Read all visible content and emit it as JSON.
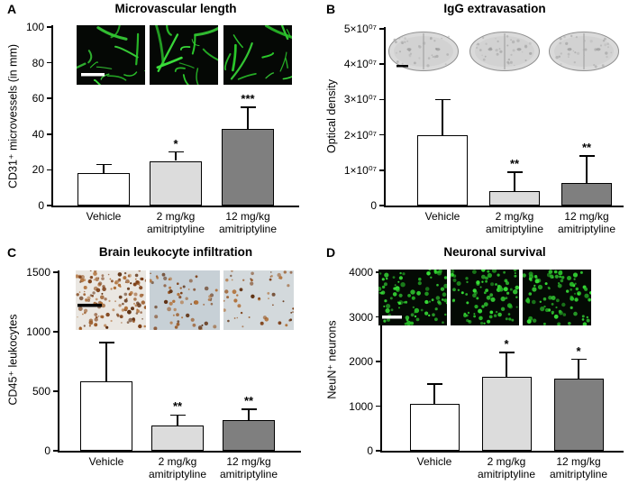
{
  "chart_data": [
    {
      "type": "bar",
      "panel": "A",
      "title": "Microvascular length",
      "ylabel": "CD31⁺ microvessels (in mm)",
      "xlabel": "",
      "categories": [
        [
          "Vehicle"
        ],
        [
          "2 mg/kg",
          "amitriptyline"
        ],
        [
          "12 mg/kg",
          "amitriptyline"
        ]
      ],
      "values": [
        18,
        25,
        43
      ],
      "errors": [
        5,
        5,
        12
      ],
      "significance": [
        "",
        "*",
        "***"
      ],
      "ylim": [
        0,
        100
      ],
      "yticks": [
        0,
        20,
        40,
        60,
        80,
        100
      ],
      "ytick_labels": [
        "0",
        "20",
        "40",
        "60",
        "80",
        "100"
      ],
      "bar_colors": [
        "#ffffff",
        "#dcdcdc",
        "#7f7f7f"
      ],
      "grid": false,
      "inset": {
        "type": "vessel-micrograph",
        "count": 3,
        "scalebar": "white"
      }
    },
    {
      "type": "bar",
      "panel": "B",
      "title": "IgG extravasation",
      "ylabel": "Optical density",
      "xlabel": "",
      "categories": [
        [
          "Vehicle"
        ],
        [
          "2 mg/kg",
          "amitriptyline"
        ],
        [
          "12 mg/kg",
          "amitriptyline"
        ]
      ],
      "values": [
        20000000,
        4200000,
        6500000
      ],
      "errors": [
        10000000,
        5300000,
        7500000
      ],
      "significance": [
        "",
        "**",
        "**"
      ],
      "ylim": [
        0,
        50000000
      ],
      "yticks": [
        0,
        10000000,
        20000000,
        30000000,
        40000000,
        50000000
      ],
      "ytick_labels": [
        "0",
        "1×10⁰⁷",
        "2×10⁰⁷",
        "3×10⁰⁷",
        "4×10⁰⁷",
        "5×10⁰⁷"
      ],
      "bar_colors": [
        "#ffffff",
        "#dcdcdc",
        "#7f7f7f"
      ],
      "grid": false,
      "inset": {
        "type": "brain-section",
        "count": 3,
        "scalebar": "black"
      }
    },
    {
      "type": "bar",
      "panel": "C",
      "title": "Brain leukocyte infiltration",
      "ylabel": "CD45⁺ leukocytes",
      "xlabel": "",
      "categories": [
        [
          "Vehicle"
        ],
        [
          "2 mg/kg",
          "amitriptyline"
        ],
        [
          "12 mg/kg",
          "amitriptyline"
        ]
      ],
      "values": [
        580,
        215,
        255
      ],
      "errors": [
        330,
        85,
        95
      ],
      "significance": [
        "",
        "**",
        "**"
      ],
      "ylim": [
        0,
        1500
      ],
      "yticks": [
        0,
        500,
        1000,
        1500
      ],
      "ytick_labels": [
        "0",
        "500",
        "1000",
        "1500"
      ],
      "bar_colors": [
        "#ffffff",
        "#dcdcdc",
        "#7f7f7f"
      ],
      "grid": false,
      "inset": {
        "type": "ihc-micrograph",
        "count": 3,
        "scalebar": "black"
      }
    },
    {
      "type": "bar",
      "panel": "D",
      "title": "Neuronal survival",
      "ylabel": "NeuN⁺ neurons",
      "xlabel": "",
      "categories": [
        [
          "Vehicle"
        ],
        [
          "2 mg/kg",
          "amitriptyline"
        ],
        [
          "12 mg/kg",
          "amitriptyline"
        ]
      ],
      "values": [
        1050,
        1650,
        1620
      ],
      "errors": [
        450,
        550,
        430
      ],
      "significance": [
        "",
        "*",
        "*"
      ],
      "ylim": [
        0,
        4000
      ],
      "yticks": [
        0,
        1000,
        2000,
        3000,
        4000
      ],
      "ytick_labels": [
        "0",
        "1000",
        "2000",
        "3000",
        "4000"
      ],
      "bar_colors": [
        "#ffffff",
        "#dcdcdc",
        "#7f7f7f"
      ],
      "grid": false,
      "inset": {
        "type": "neuron-micrograph",
        "count": 3,
        "scalebar": "white"
      }
    }
  ]
}
